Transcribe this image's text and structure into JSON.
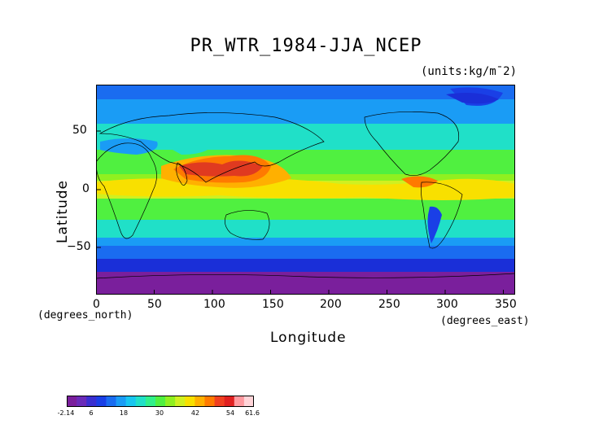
{
  "title": "PR_WTR_1984-JJA_NCEP",
  "units_label": "(units:kg/m¯2)",
  "axes": {
    "xlabel": "Longitude",
    "ylabel": "Latitude",
    "x_note": "(degrees_north)",
    "x_note2": "(degrees_east)",
    "xticks": [
      "0",
      "50",
      "100",
      "150",
      "200",
      "250",
      "300",
      "350"
    ],
    "yticks": [
      "50",
      "0",
      "−50"
    ]
  },
  "colorbar": {
    "labels": [
      "-2.14",
      "6",
      "18",
      "30",
      "42",
      "54",
      "61.6"
    ],
    "colors": [
      "#7a1f9c",
      "#6a2bb8",
      "#3a2fd0",
      "#1a3fe6",
      "#1a6cf0",
      "#1a9cf5",
      "#18c6f0",
      "#20e0c8",
      "#30f08a",
      "#50f040",
      "#90f020",
      "#d0f020",
      "#f8e000",
      "#ffb000",
      "#ff7a00",
      "#f04020",
      "#e02020",
      "#ff9aa0",
      "#ffd4d8"
    ]
  },
  "chart_data": {
    "type": "heatmap",
    "title": "PR_WTR_1984-JJA_NCEP",
    "units": "(units:kg/m¯2)",
    "xlabel": "Longitude",
    "ylabel": "Latitude",
    "xlim": [
      0,
      360
    ],
    "ylim": [
      -90,
      90
    ],
    "colorscale_range": [
      -2.14,
      61.6
    ],
    "zonal_bands": [
      {
        "lat": 75,
        "value": 12
      },
      {
        "lat": 55,
        "value": 20
      },
      {
        "lat": 40,
        "value": 26
      },
      {
        "lat": 25,
        "value": 34
      },
      {
        "lat": 10,
        "value": 44
      },
      {
        "lat": 0,
        "value": 42
      },
      {
        "lat": -10,
        "value": 34
      },
      {
        "lat": -25,
        "value": 26
      },
      {
        "lat": -40,
        "value": 16
      },
      {
        "lat": -55,
        "value": 9
      },
      {
        "lat": -70,
        "value": 4
      },
      {
        "lat": -85,
        "value": 0
      }
    ]
  }
}
